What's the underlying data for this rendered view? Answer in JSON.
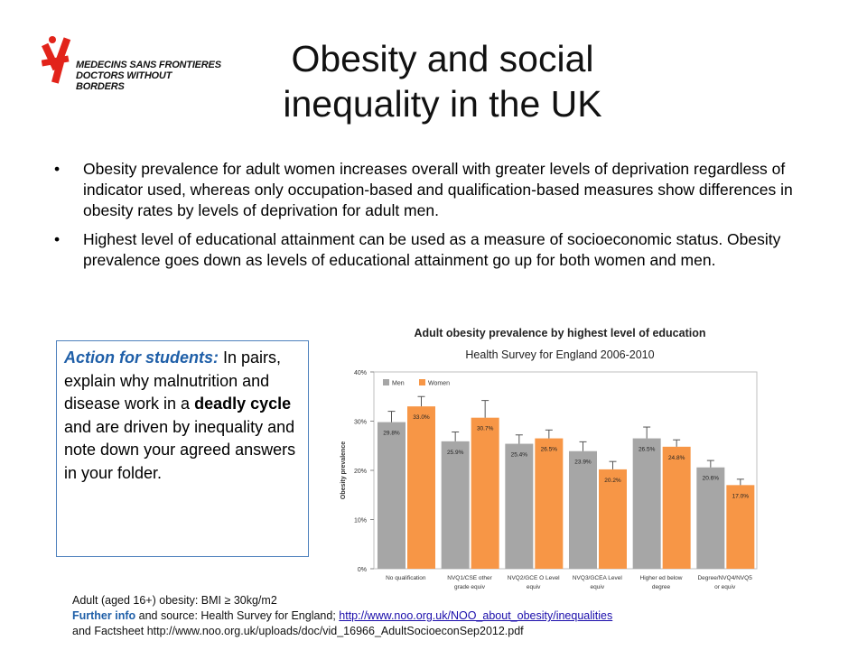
{
  "logo": {
    "line1": "MEDECINS SANS FRONTIERES",
    "line2": "DOCTORS WITHOUT BORDERS",
    "brand_color": "#e2231a"
  },
  "title": {
    "line1": "Obesity and social",
    "line2": "inequality in the UK"
  },
  "bullets": [
    "Obesity prevalence for adult women increases overall with greater levels of deprivation regardless of indicator used, whereas only occupation-based and qualification-based measures show differences in obesity rates by levels of deprivation for adult men.",
    "Highest level of educational attainment can be used as a measure of socioeconomic status. Obesity prevalence goes down as levels of educational attainment go up for both women and men."
  ],
  "action": {
    "label": "Action for students:",
    "text1": " In pairs, explain why malnutrition and disease work in a ",
    "bold": "deadly cycle",
    "text2": " and are driven by inequality and note down your agreed answers in your folder."
  },
  "footnotes": {
    "line1": "Adult (aged 16+) obesity: BMI ≥ 30kg/m2",
    "further_label": "Further info",
    "further_text": " and source: Health Survey for England; ",
    "link": "http://www.noo.org.uk/NOO_about_obesity/inequalities",
    "line3": "and Factsheet http://www.noo.org.uk/uploads/doc/vid_16966_AdultSocioeconSep2012.pdf"
  },
  "chart_data": {
    "type": "bar",
    "title": "Adult obesity prevalence by highest level of education",
    "subtitle": "Health Survey for England 2006-2010",
    "ylabel": "Obesity prevalence",
    "xlabel": "",
    "ylim": [
      0,
      40
    ],
    "yticks": [
      "0%",
      "10%",
      "20%",
      "30%",
      "40%"
    ],
    "legend_position": "top-left",
    "categories": [
      [
        "No qualification"
      ],
      [
        "NVQ1/CSE other",
        "grade equiv"
      ],
      [
        "NVQ2/GCE O Level",
        "equiv"
      ],
      [
        "NVQ3/GCEA Level",
        "equiv"
      ],
      [
        "Higher ed below",
        "degree"
      ],
      [
        "Degree/NVQ4/NVQ5",
        "or equiv"
      ]
    ],
    "series": [
      {
        "name": "Men",
        "color": "#a6a6a6",
        "values": [
          29.8,
          25.9,
          25.4,
          23.9,
          26.5,
          20.6
        ],
        "labels": [
          "29.8%",
          "25.9%",
          "25.4%",
          "23.9%",
          "26.5%",
          "20.6%"
        ],
        "ci_high": [
          32.0,
          27.8,
          27.2,
          25.8,
          28.8,
          22.0
        ]
      },
      {
        "name": "Women",
        "color": "#f79646",
        "values": [
          33.0,
          30.7,
          26.5,
          20.2,
          24.8,
          17.0
        ],
        "labels": [
          "33.0%",
          "30.7%",
          "26.5%",
          "20.2%",
          "24.8%",
          "17.0%"
        ],
        "ci_high": [
          35.0,
          34.2,
          28.2,
          21.8,
          26.2,
          18.2
        ]
      }
    ]
  }
}
